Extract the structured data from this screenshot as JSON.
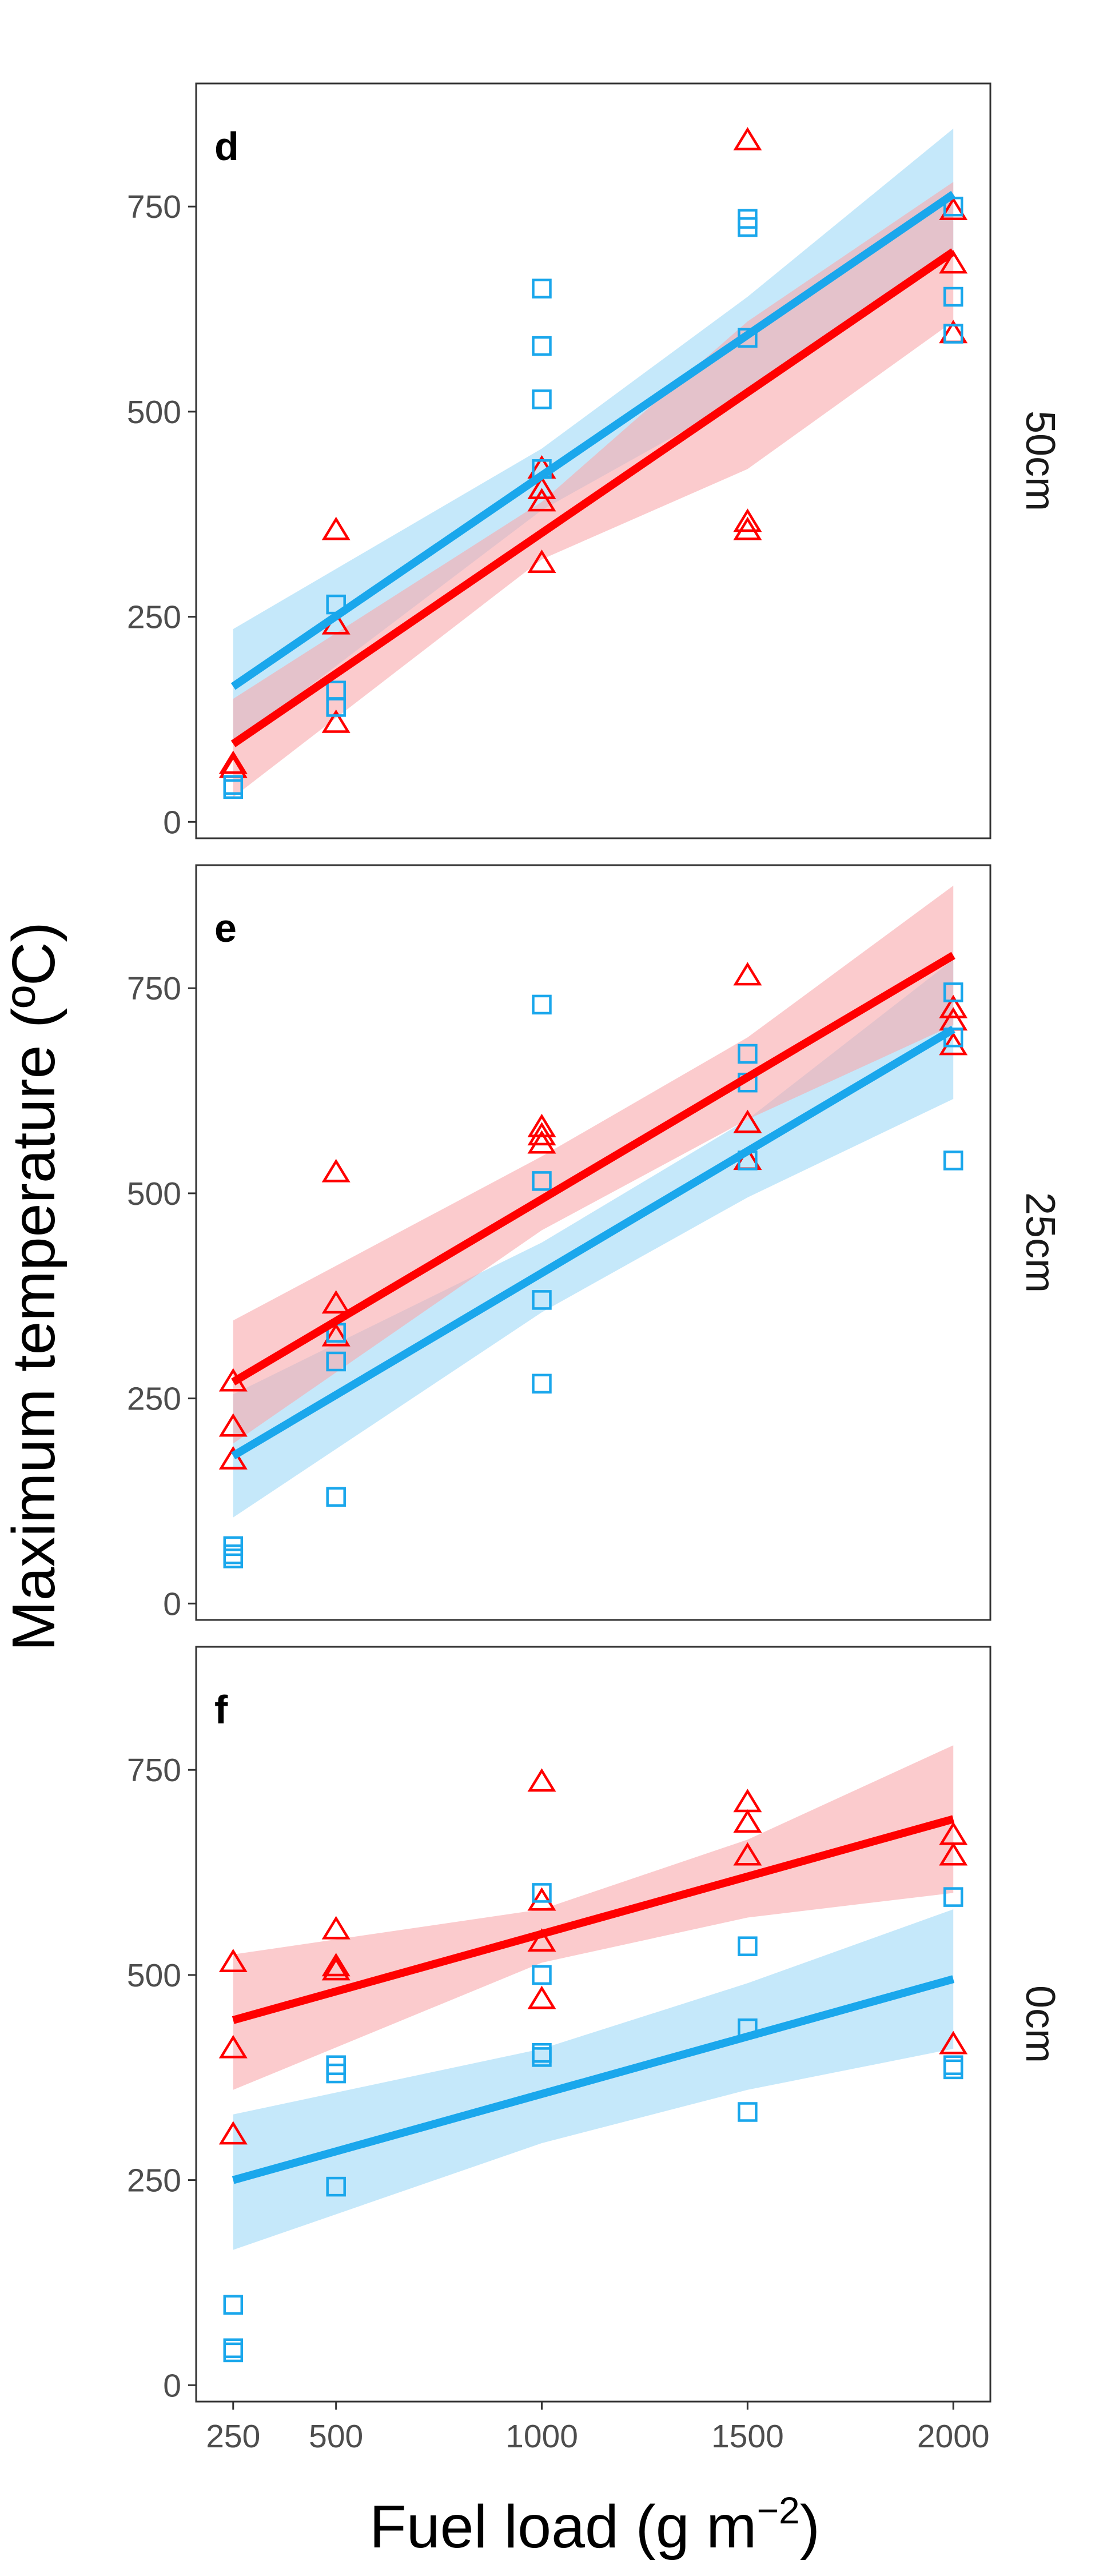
{
  "chart_data": {
    "type": "scatter",
    "y_axis_title": "Maximum temperature (ºC)",
    "x_axis_title_main": "Fuel load (g m",
    "x_axis_title_sup": "−2",
    "x_axis_title_close": ")",
    "x_ticks": [
      250,
      500,
      1000,
      1500,
      2000
    ],
    "x_tick_labels": [
      "250",
      "500",
      "1000",
      "1500",
      "2000"
    ],
    "y_ticks": [
      0,
      250,
      500,
      750
    ],
    "y_tick_labels": [
      "0",
      "250",
      "500",
      "750"
    ],
    "xlim": [
      160,
      2090
    ],
    "ylim": [
      -20,
      900
    ],
    "grid": false,
    "legend": "none",
    "colors": {
      "red": "#ff0000",
      "blue": "#1aa7ec",
      "red_band": "#f8a9ab",
      "blue_band": "#9fd9f6"
    },
    "panels": [
      {
        "letter": "d",
        "strip": "50cm",
        "series": [
          {
            "marker": "triangle",
            "color": "#ff0000",
            "fit": {
              "x": [
                250,
                2000
              ],
              "y": [
                95,
                695
              ]
            },
            "band": {
              "x": [
                250,
                1000,
                1500,
                2000
              ],
              "lower": [
                30,
                320,
                430,
                610
              ],
              "upper": [
                150,
                390,
                610,
                780
              ]
            },
            "points": [
              [
                250,
                70
              ],
              [
                250,
                65
              ],
              [
                500,
                355
              ],
              [
                500,
                240
              ],
              [
                500,
                120
              ],
              [
                1000,
                430
              ],
              [
                1000,
                405
              ],
              [
                1000,
                390
              ],
              [
                1000,
                315
              ],
              [
                1500,
                830
              ],
              [
                1500,
                365
              ],
              [
                1500,
                355
              ],
              [
                2000,
                745
              ],
              [
                2000,
                680
              ],
              [
                2000,
                595
              ]
            ]
          },
          {
            "marker": "square",
            "color": "#1aa7ec",
            "fit": {
              "x": [
                250,
                2000
              ],
              "y": [
                165,
                765
              ]
            },
            "band": {
              "x": [
                250,
                1000,
                1500,
                2000
              ],
              "lower": [
                95,
                380,
                520,
                690
              ],
              "upper": [
                235,
                455,
                640,
                845
              ]
            },
            "points": [
              [
                250,
                45
              ],
              [
                250,
                40
              ],
              [
                500,
                265
              ],
              [
                500,
                160
              ],
              [
                500,
                140
              ],
              [
                1000,
                650
              ],
              [
                1000,
                580
              ],
              [
                1000,
                515
              ],
              [
                1000,
                430
              ],
              [
                1500,
                735
              ],
              [
                1500,
                725
              ],
              [
                1500,
                590
              ],
              [
                2000,
                750
              ],
              [
                2000,
                640
              ],
              [
                2000,
                595
              ]
            ]
          }
        ]
      },
      {
        "letter": "e",
        "strip": "25cm",
        "series": [
          {
            "marker": "triangle",
            "color": "#ff0000",
            "fit": {
              "x": [
                250,
                2000
              ],
              "y": [
                270,
                790
              ]
            },
            "band": {
              "x": [
                250,
                1000,
                1500,
                2000
              ],
              "lower": [
                195,
                455,
                590,
                705
              ],
              "upper": [
                345,
                545,
                690,
                875
              ]
            },
            "points": [
              [
                250,
                270
              ],
              [
                250,
                215
              ],
              [
                250,
                175
              ],
              [
                500,
                525
              ],
              [
                500,
                365
              ],
              [
                500,
                325
              ],
              [
                1000,
                580
              ],
              [
                1000,
                570
              ],
              [
                1000,
                560
              ],
              [
                1500,
                765
              ],
              [
                1500,
                585
              ],
              [
                1500,
                540
              ],
              [
                2000,
                725
              ],
              [
                2000,
                710
              ],
              [
                2000,
                680
              ]
            ]
          },
          {
            "marker": "square",
            "color": "#1aa7ec",
            "fit": {
              "x": [
                250,
                2000
              ],
              "y": [
                180,
                700
              ]
            },
            "band": {
              "x": [
                250,
                1000,
                1500,
                2000
              ],
              "lower": [
                105,
                355,
                495,
                615
              ],
              "upper": [
                255,
                440,
                590,
                785
              ]
            },
            "points": [
              [
                250,
                70
              ],
              [
                250,
                60
              ],
              [
                250,
                55
              ],
              [
                500,
                330
              ],
              [
                500,
                295
              ],
              [
                500,
                130
              ],
              [
                1000,
                730
              ],
              [
                1000,
                515
              ],
              [
                1000,
                370
              ],
              [
                1000,
                268
              ],
              [
                1500,
                670
              ],
              [
                1500,
                635
              ],
              [
                1500,
                540
              ],
              [
                2000,
                745
              ],
              [
                2000,
                690
              ],
              [
                2000,
                540
              ]
            ]
          }
        ]
      },
      {
        "letter": "f",
        "strip": "0cm",
        "series": [
          {
            "marker": "triangle",
            "color": "#ff0000",
            "fit": {
              "x": [
                250,
                2000
              ],
              "y": [
                445,
                690
              ]
            },
            "band": {
              "x": [
                250,
                1000,
                1500,
                2000
              ],
              "lower": [
                360,
                515,
                570,
                600
              ],
              "upper": [
                525,
                580,
                665,
                780
              ]
            },
            "points": [
              [
                250,
                515
              ],
              [
                250,
                410
              ],
              [
                250,
                305
              ],
              [
                500,
                555
              ],
              [
                500,
                510
              ],
              [
                500,
                505
              ],
              [
                1000,
                735
              ],
              [
                1000,
                590
              ],
              [
                1000,
                540
              ],
              [
                1000,
                470
              ],
              [
                1500,
                710
              ],
              [
                1500,
                685
              ],
              [
                1500,
                645
              ],
              [
                2000,
                670
              ],
              [
                2000,
                645
              ],
              [
                2000,
                415
              ]
            ]
          },
          {
            "marker": "square",
            "color": "#1aa7ec",
            "fit": {
              "x": [
                250,
                2000
              ],
              "y": [
                250,
                495
              ]
            },
            "band": {
              "x": [
                250,
                1000,
                1500,
                2000
              ],
              "lower": [
                165,
                295,
                360,
                410
              ],
              "upper": [
                330,
                410,
                490,
                580
              ]
            },
            "points": [
              [
                250,
                98
              ],
              [
                250,
                45
              ],
              [
                250,
                40
              ],
              [
                500,
                390
              ],
              [
                500,
                380
              ],
              [
                500,
                242
              ],
              [
                1000,
                600
              ],
              [
                1000,
                500
              ],
              [
                1000,
                405
              ],
              [
                1000,
                400
              ],
              [
                1500,
                535
              ],
              [
                1500,
                435
              ],
              [
                1500,
                333
              ],
              [
                2000,
                595
              ],
              [
                2000,
                390
              ],
              [
                2000,
                385
              ]
            ]
          }
        ]
      }
    ]
  }
}
